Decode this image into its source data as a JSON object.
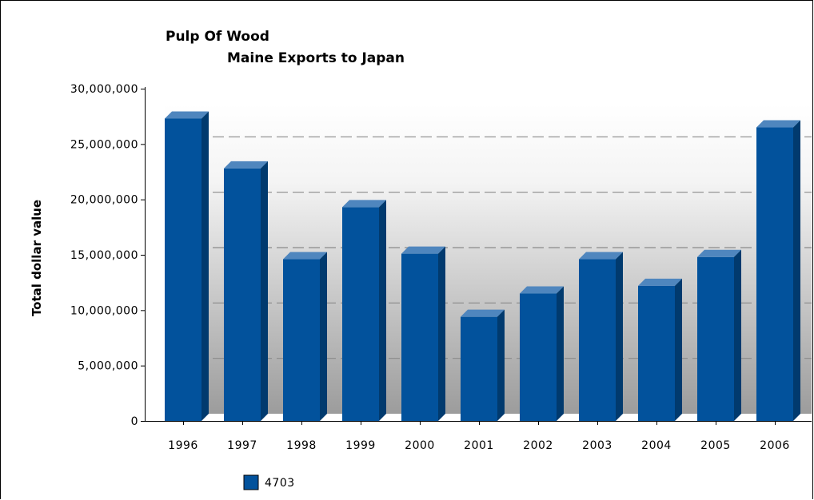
{
  "chart_data": {
    "type": "bar",
    "title": "Pulp Of Wood",
    "subtitle": "Maine Exports to Japan",
    "xlabel": "",
    "ylabel": "Total dollar value",
    "ylim": [
      0,
      30000000
    ],
    "yticks": [
      0,
      5000000,
      10000000,
      15000000,
      20000000,
      25000000,
      30000000
    ],
    "ytick_labels": [
      "0",
      "5,000,000",
      "10,000,000",
      "15,000,000",
      "20,000,000",
      "25,000,000",
      "30,000,000"
    ],
    "categories": [
      "1996",
      "1997",
      "1998",
      "1999",
      "2000",
      "2001",
      "2002",
      "2003",
      "2004",
      "2005",
      "2006"
    ],
    "series": [
      {
        "name": "4703",
        "color": "#02529c",
        "values": [
          27300000,
          22800000,
          14600000,
          19300000,
          15100000,
          9400000,
          11500000,
          14600000,
          12200000,
          14800000,
          26500000
        ]
      }
    ],
    "grid": true,
    "legend": "bottom-left"
  }
}
